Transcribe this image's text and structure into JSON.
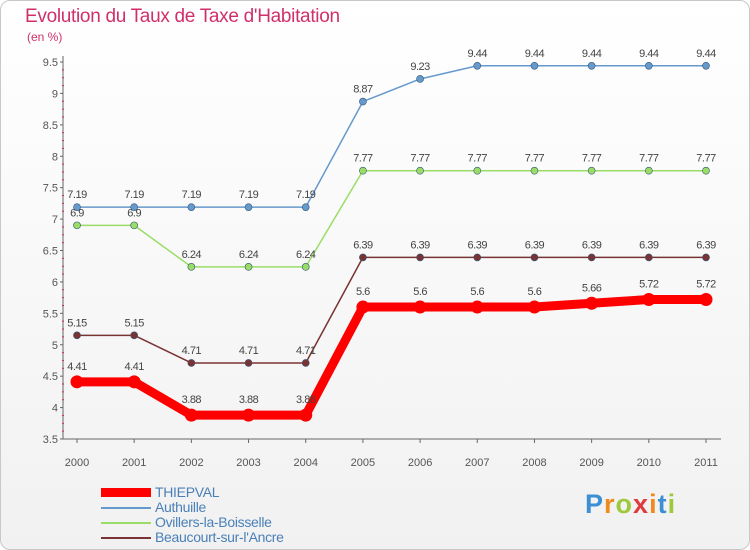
{
  "header": {
    "title": "Evolution du Taux de Taxe d'Habitation",
    "unit": "(en %)"
  },
  "brand": {
    "name": "Proxiti"
  },
  "chart_data": {
    "type": "line",
    "title": "Evolution du Taux de Taxe d'Habitation",
    "ylabel": "(en %)",
    "xlabel": "",
    "ylim": [
      3.5,
      9.5
    ],
    "yticks": [
      3.5,
      4,
      4.5,
      5,
      5.5,
      6,
      6.5,
      7,
      7.5,
      8,
      8.5,
      9,
      9.5
    ],
    "grid": false,
    "legend_position": "bottom-left",
    "x": [
      "2000",
      "2001",
      "2002",
      "2003",
      "2004",
      "2005",
      "2006",
      "2007",
      "2008",
      "2009",
      "2010",
      "2011"
    ],
    "series": [
      {
        "name": "THIEPVAL",
        "color": "#ff0000",
        "values": [
          4.41,
          4.41,
          3.88,
          3.88,
          3.88,
          5.6,
          5.6,
          5.6,
          5.6,
          5.66,
          5.72,
          5.72
        ],
        "labels": [
          "4.41",
          "4.41",
          "3.88",
          "3.88",
          "3.88",
          "5.6",
          "5.6",
          "5.6",
          "5.6",
          "5.66",
          "5.72",
          "5.72"
        ]
      },
      {
        "name": "Authuille",
        "color": "#6699cc",
        "values": [
          7.19,
          7.19,
          7.19,
          7.19,
          7.19,
          8.87,
          9.23,
          9.44,
          9.44,
          9.44,
          9.44,
          9.44
        ],
        "labels": [
          "7.19",
          "7.19",
          "7.19",
          "7.19",
          "7.19",
          "8.87",
          "9.23",
          "9.44",
          "9.44",
          "9.44",
          "9.44",
          "9.44"
        ]
      },
      {
        "name": "Ovillers-la-Boisselle",
        "color": "#99dd66",
        "values": [
          6.9,
          6.9,
          6.24,
          6.24,
          6.24,
          7.77,
          7.77,
          7.77,
          7.77,
          7.77,
          7.77,
          7.77
        ],
        "labels": [
          "6.9",
          "6.9",
          "6.24",
          "6.24",
          "6.24",
          "7.77",
          "7.77",
          "7.77",
          "7.77",
          "7.77",
          "7.77",
          "7.77"
        ]
      },
      {
        "name": "Beaucourt-sur-l'Ancre",
        "color": "#7a3333",
        "values": [
          5.15,
          5.15,
          4.71,
          4.71,
          4.71,
          6.39,
          6.39,
          6.39,
          6.39,
          6.39,
          6.39,
          6.39
        ],
        "labels": [
          "5.15",
          "5.15",
          "4.71",
          "4.71",
          "4.71",
          "6.39",
          "6.39",
          "6.39",
          "6.39",
          "6.39",
          "6.39",
          "6.39"
        ]
      }
    ]
  }
}
